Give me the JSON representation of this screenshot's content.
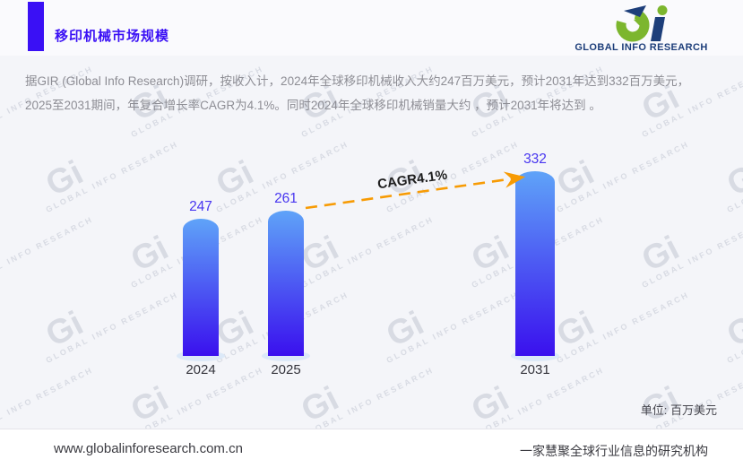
{
  "header": {
    "title": "移印机械市场规模",
    "logo": {
      "caption": "GLOBAL INFO RESEARCH",
      "green": "#7cb62e",
      "navy": "#1d3e7a"
    }
  },
  "intro": {
    "lines": [
      "据GIR (Global Info Research)调研，按收入计，2024年全球移印机械收入大约247百万美元，预计2031年达到332百万美元，",
      "2025至2031期间，年复合增长率CAGR为4.1%。同时2024年全球移印机械销量大约 ，预计2031年将达到 。"
    ]
  },
  "chart_data": {
    "type": "bar",
    "title": "移印机械市场规模",
    "categories": [
      "2024",
      "2025",
      "2031"
    ],
    "values": [
      247,
      261,
      332
    ],
    "annotation": "CAGR4.1%",
    "unit_label": "单位: 百万美元",
    "ylim": [
      0,
      360
    ],
    "grid": false,
    "legend": "none",
    "colors": {
      "bar_gradient_top": "#5fa3f8",
      "bar_gradient_bottom": "#3a10ee",
      "value_label": "#4836f0",
      "arrow": "#f79b04",
      "accent": "#3a10f5"
    }
  },
  "watermark": {
    "logo": "Gi",
    "text": "GLOBAL INFO RESEARCH"
  },
  "footer": {
    "website": "www.globalinforesearch.com.cn",
    "slogan": "一家慧聚全球行业信息的研究机构"
  }
}
